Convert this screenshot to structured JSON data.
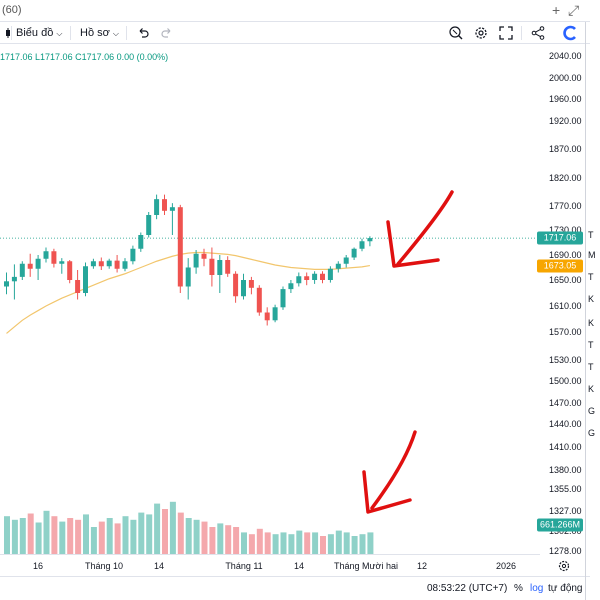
{
  "window": {
    "title": "(60)",
    "buttons": {
      "new_tab": "+",
      "popout": "⤢"
    }
  },
  "toolbar": {
    "chart_label": "Biểu đồ",
    "profile_label": "Hồ sơ",
    "icons": [
      "chart-type-icon",
      "undo-icon",
      "redo-icon",
      "screenshot-icon",
      "settings-icon",
      "fullscreen-icon",
      "share-icon",
      "brand-logo-icon"
    ]
  },
  "ohlc_text": "1717.06  L1717.06  C1717.06  0.00 (0.00%)",
  "price_axis": {
    "labels": [
      "2040.00",
      "2000.00",
      "1960.00",
      "1920.00",
      "1870.00",
      "1820.00",
      "1770.00",
      "1730.00",
      "1690.00",
      "1650.00",
      "1610.00",
      "1570.00",
      "1530.00",
      "1500.00",
      "1470.00",
      "1440.00",
      "1410.00",
      "1380.00",
      "1355.00",
      "1327.00",
      "1302.00",
      "1278.00"
    ],
    "current_price": "1717.06",
    "ma_price": "1673.05",
    "volume_value": "661.266M"
  },
  "time_axis": {
    "labels": [
      "16",
      "Tháng 10",
      "14",
      "Tháng 11",
      "14",
      "Tháng Mười hai",
      "12",
      "2026"
    ]
  },
  "bottom_bar": {
    "time": "08:53:22 (UTC+7)",
    "percent": "%",
    "log": "log",
    "auto": "tự động"
  },
  "right_panel": {
    "items": [
      "T",
      "M",
      "T",
      "K",
      "K",
      "T",
      "T",
      "K",
      "G",
      "G"
    ]
  },
  "colors": {
    "up": "#26a69a",
    "down": "#ef5350",
    "vol_up": "#8fd1c8",
    "vol_down": "#f4a8ac",
    "ma": "#f2c66d",
    "accent": "#2962ff",
    "annotation": "#e01010"
  },
  "chart_data": {
    "type": "candlestick",
    "price_range": [
      1260,
      2060
    ],
    "candles": [
      {
        "o": 1640,
        "h": 1662,
        "l": 1628,
        "c": 1648
      },
      {
        "o": 1648,
        "h": 1675,
        "l": 1620,
        "c": 1655
      },
      {
        "o": 1655,
        "h": 1680,
        "l": 1650,
        "c": 1676
      },
      {
        "o": 1676,
        "h": 1692,
        "l": 1655,
        "c": 1668
      },
      {
        "o": 1668,
        "h": 1690,
        "l": 1650,
        "c": 1684
      },
      {
        "o": 1684,
        "h": 1702,
        "l": 1678,
        "c": 1696
      },
      {
        "o": 1696,
        "h": 1700,
        "l": 1670,
        "c": 1676
      },
      {
        "o": 1676,
        "h": 1685,
        "l": 1660,
        "c": 1680
      },
      {
        "o": 1680,
        "h": 1682,
        "l": 1645,
        "c": 1650
      },
      {
        "o": 1650,
        "h": 1666,
        "l": 1620,
        "c": 1630
      },
      {
        "o": 1630,
        "h": 1678,
        "l": 1625,
        "c": 1672
      },
      {
        "o": 1672,
        "h": 1684,
        "l": 1668,
        "c": 1680
      },
      {
        "o": 1680,
        "h": 1686,
        "l": 1666,
        "c": 1672
      },
      {
        "o": 1672,
        "h": 1684,
        "l": 1668,
        "c": 1681
      },
      {
        "o": 1681,
        "h": 1690,
        "l": 1662,
        "c": 1668
      },
      {
        "o": 1668,
        "h": 1685,
        "l": 1664,
        "c": 1680
      },
      {
        "o": 1680,
        "h": 1705,
        "l": 1675,
        "c": 1700
      },
      {
        "o": 1700,
        "h": 1726,
        "l": 1695,
        "c": 1722
      },
      {
        "o": 1722,
        "h": 1760,
        "l": 1718,
        "c": 1755
      },
      {
        "o": 1755,
        "h": 1790,
        "l": 1748,
        "c": 1782
      },
      {
        "o": 1782,
        "h": 1790,
        "l": 1755,
        "c": 1762
      },
      {
        "o": 1762,
        "h": 1775,
        "l": 1722,
        "c": 1768
      },
      {
        "o": 1768,
        "h": 1772,
        "l": 1630,
        "c": 1640
      },
      {
        "o": 1640,
        "h": 1685,
        "l": 1620,
        "c": 1670
      },
      {
        "o": 1670,
        "h": 1698,
        "l": 1660,
        "c": 1692
      },
      {
        "o": 1692,
        "h": 1700,
        "l": 1672,
        "c": 1684
      },
      {
        "o": 1684,
        "h": 1702,
        "l": 1640,
        "c": 1658
      },
      {
        "o": 1658,
        "h": 1690,
        "l": 1630,
        "c": 1682
      },
      {
        "o": 1682,
        "h": 1688,
        "l": 1655,
        "c": 1660
      },
      {
        "o": 1660,
        "h": 1664,
        "l": 1615,
        "c": 1625
      },
      {
        "o": 1625,
        "h": 1660,
        "l": 1620,
        "c": 1650
      },
      {
        "o": 1650,
        "h": 1655,
        "l": 1628,
        "c": 1638
      },
      {
        "o": 1638,
        "h": 1642,
        "l": 1595,
        "c": 1600
      },
      {
        "o": 1600,
        "h": 1608,
        "l": 1580,
        "c": 1588
      },
      {
        "o": 1588,
        "h": 1612,
        "l": 1585,
        "c": 1608
      },
      {
        "o": 1608,
        "h": 1640,
        "l": 1604,
        "c": 1636
      },
      {
        "o": 1636,
        "h": 1650,
        "l": 1630,
        "c": 1645
      },
      {
        "o": 1645,
        "h": 1662,
        "l": 1640,
        "c": 1656
      },
      {
        "o": 1656,
        "h": 1662,
        "l": 1642,
        "c": 1650
      },
      {
        "o": 1650,
        "h": 1664,
        "l": 1644,
        "c": 1660
      },
      {
        "o": 1660,
        "h": 1664,
        "l": 1645,
        "c": 1650
      },
      {
        "o": 1650,
        "h": 1672,
        "l": 1646,
        "c": 1668
      },
      {
        "o": 1668,
        "h": 1680,
        "l": 1662,
        "c": 1676
      },
      {
        "o": 1676,
        "h": 1690,
        "l": 1670,
        "c": 1686
      },
      {
        "o": 1686,
        "h": 1702,
        "l": 1682,
        "c": 1700
      },
      {
        "o": 1700,
        "h": 1716,
        "l": 1696,
        "c": 1712
      },
      {
        "o": 1712,
        "h": 1720,
        "l": 1704,
        "c": 1717.06
      }
    ],
    "ma": [
      1568,
      1578,
      1588,
      1596,
      1603,
      1610,
      1616,
      1622,
      1627,
      1632,
      1637,
      1642,
      1647,
      1652,
      1656,
      1660,
      1665,
      1670,
      1675,
      1680,
      1684,
      1688,
      1691,
      1693,
      1694,
      1694,
      1693,
      1692,
      1691,
      1689,
      1686,
      1683,
      1680,
      1677,
      1674,
      1672,
      1670,
      1669,
      1668,
      1667,
      1667,
      1667,
      1668,
      1669,
      1670,
      1671,
      1673.05
    ],
    "volume_range": [
      0,
      100
    ],
    "volumes": [
      42,
      38,
      40,
      45,
      35,
      48,
      42,
      36,
      40,
      38,
      44,
      30,
      36,
      40,
      34,
      42,
      38,
      46,
      44,
      56,
      50,
      58,
      46,
      40,
      38,
      36,
      30,
      34,
      32,
      30,
      24,
      22,
      28,
      24,
      22,
      24,
      22,
      26,
      24,
      24,
      20,
      22,
      26,
      24,
      20,
      22,
      24
    ]
  },
  "annotations": [
    {
      "name": "arrow-to-price"
    },
    {
      "name": "arrow-to-volume"
    }
  ]
}
